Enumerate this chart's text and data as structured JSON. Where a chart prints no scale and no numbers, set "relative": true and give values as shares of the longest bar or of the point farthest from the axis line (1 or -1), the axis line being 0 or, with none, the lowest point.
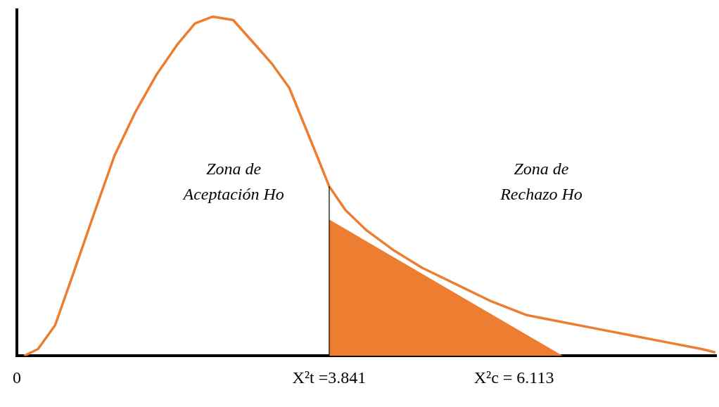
{
  "chart_data": {
    "type": "line",
    "relative": true,
    "grid": false,
    "legend": false,
    "tick_labels": "x",
    "xlim": [
      0,
      8.6
    ],
    "xticks": [
      0,
      {
        "value": 3.841,
        "label": "X²t =3.841"
      },
      {
        "value": 6.113,
        "label": "X²c = 6.113"
      }
    ],
    "series": [
      {
        "type": "area",
        "color": "#ed7d31",
        "x": [
          3.841,
          6.7
        ],
        "values": [
          0.4,
          0
        ]
      },
      {
        "color": "#ed7d31",
        "x": [
          0.09,
          0.26,
          0.47,
          0.69,
          0.95,
          1.2,
          1.46,
          1.72,
          1.98,
          2.19,
          2.41,
          2.66,
          2.92,
          3.14,
          3.35,
          3.52,
          3.69,
          3.84,
          4.04,
          4.3,
          4.64,
          4.98,
          5.41,
          5.84,
          6.27,
          6.7,
          7.13,
          7.56,
          7.99,
          8.42,
          8.59
        ],
        "values": [
          0,
          0.02,
          0.09,
          0.24,
          0.42,
          0.59,
          0.72,
          0.83,
          0.92,
          0.98,
          1.0,
          0.99,
          0.92,
          0.86,
          0.79,
          0.69,
          0.59,
          0.5,
          0.43,
          0.37,
          0.31,
          0.26,
          0.21,
          0.16,
          0.12,
          0.1,
          0.08,
          0.06,
          0.04,
          0.02,
          0.01
        ]
      }
    ],
    "ref_lines": [
      {
        "axis": "x",
        "value": 3.841,
        "color": "#000000"
      }
    ],
    "annotations": [
      "Zona de\nAceptación Ho",
      "Zona de\nRechazo Ho"
    ]
  }
}
